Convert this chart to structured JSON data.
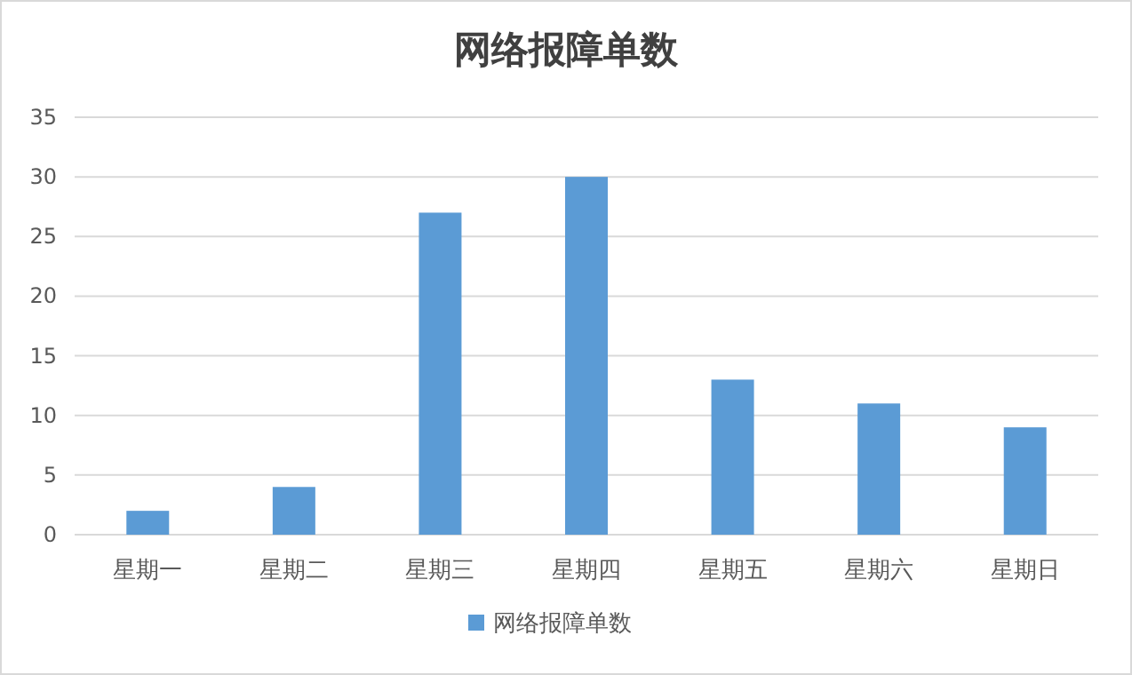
{
  "chart_data": {
    "type": "bar",
    "title": "网络报障单数",
    "categories": [
      "星期一",
      "星期二",
      "星期三",
      "星期四",
      "星期五",
      "星期六",
      "星期日"
    ],
    "series": [
      {
        "name": "网络报障单数",
        "color": "#5b9bd5",
        "values": [
          2,
          4,
          27,
          30,
          13,
          11,
          9
        ]
      }
    ],
    "ylim": [
      0,
      35
    ],
    "yticks": [
      0,
      5,
      10,
      15,
      20,
      25,
      30,
      35
    ],
    "grid": "y",
    "legend": "bottom"
  }
}
